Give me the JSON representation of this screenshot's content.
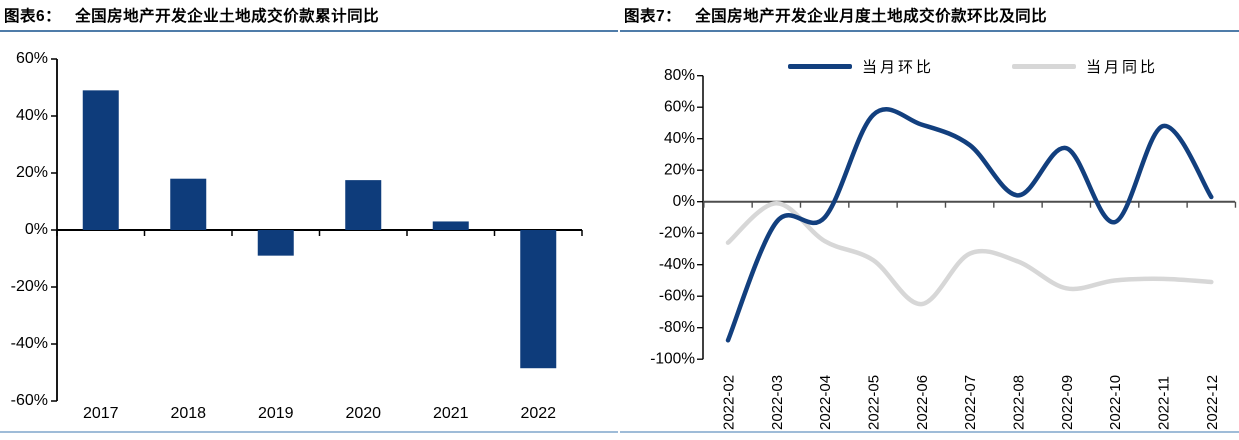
{
  "colors": {
    "navy": "#0e3c7b",
    "line_navy": "#123f7e",
    "gray_line": "#d7d7d7",
    "title_rule": "#4f7ca9",
    "bottom_rule": "#9fbcd8",
    "zero_line_right": "#4d4d4d",
    "axis_black": "#000000"
  },
  "charts": [
    {
      "id": "fig6",
      "title_prefix": "图表6：",
      "title": "全国房地产开发企业土地成交价款累计同比",
      "chart_data": {
        "type": "bar",
        "categories": [
          "2017",
          "2018",
          "2019",
          "2020",
          "2021",
          "2022"
        ],
        "values": [
          49,
          18,
          -9,
          17.5,
          3,
          -48.5
        ],
        "unit": "%",
        "ylim": [
          -60,
          60
        ],
        "ytick_step": 20,
        "grid": false,
        "bar_color": "#0e3c7b"
      }
    },
    {
      "id": "fig7",
      "title_prefix": "图表7：",
      "title": "全国房地产开发企业月度土地成交价款环比及同比",
      "chart_data": {
        "type": "line",
        "x": [
          "2022-02",
          "2022-03",
          "2022-04",
          "2022-05",
          "2022-06",
          "2022-07",
          "2022-08",
          "2022-09",
          "2022-10",
          "2022-11",
          "2022-12"
        ],
        "series": [
          {
            "name": "当月环比",
            "color": "#123f7e",
            "values": [
              -88,
              -13,
              -10,
              55,
              49,
              36,
              4,
              34,
              -13,
              48,
              3
            ]
          },
          {
            "name": "当月同比",
            "color": "#d7d7d7",
            "values": [
              -26,
              -1,
              -25,
              -37,
              -65,
              -33,
              -38,
              -55,
              -50,
              -49,
              -51
            ]
          }
        ],
        "unit": "%",
        "ylim": [
          -100,
          80
        ],
        "ytick_step": 20,
        "grid": false,
        "smooth": true,
        "legend_position": "top"
      }
    }
  ]
}
